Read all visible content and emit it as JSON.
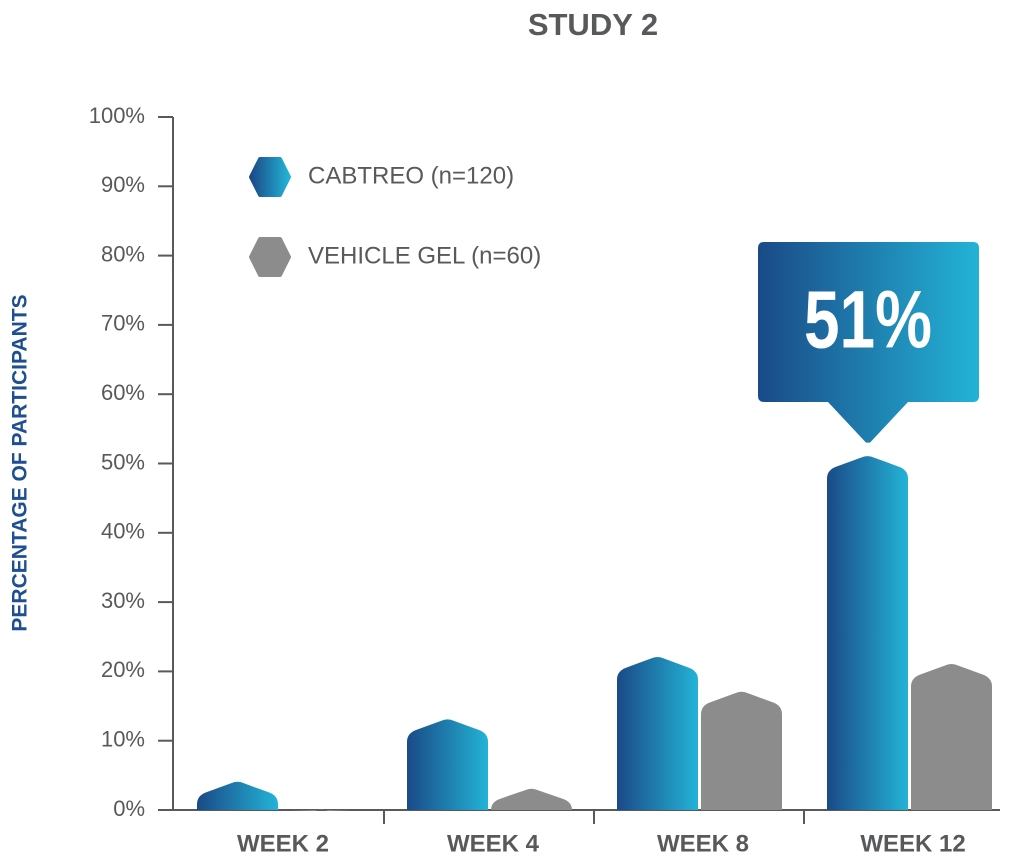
{
  "chart_data": {
    "type": "bar",
    "title": "STUDY 2",
    "y_label": "PERCENTAGE OF PARTICIPANTS",
    "categories": [
      "WEEK 2",
      "WEEK 4",
      "WEEK 8",
      "WEEK 12"
    ],
    "series": [
      {
        "name": "CABTREO (n=120)",
        "color": [
          "#1a4a87",
          "#23b3d6"
        ],
        "values": [
          4,
          13,
          22,
          51
        ],
        "value_labels": [
          null,
          null,
          null,
          "51%"
        ]
      },
      {
        "name": "VEHICLE GEL (n=60)",
        "color": "#8c8c8c",
        "values": [
          0,
          3,
          17,
          21
        ]
      }
    ],
    "ylim": [
      0,
      100
    ],
    "yticks": [
      {
        "value": 0,
        "label": "0%"
      },
      {
        "value": 10,
        "label": "10%"
      },
      {
        "value": 20,
        "label": "20%"
      },
      {
        "value": 30,
        "label": "30%"
      },
      {
        "value": 40,
        "label": "40%"
      },
      {
        "value": 50,
        "label": "50%"
      },
      {
        "value": 60,
        "label": "60%"
      },
      {
        "value": 70,
        "label": "70%"
      },
      {
        "value": 80,
        "label": "80%"
      },
      {
        "value": 90,
        "label": "90%"
      },
      {
        "value": 100,
        "label": "100%"
      }
    ],
    "legend": "top-left",
    "grid": false
  }
}
